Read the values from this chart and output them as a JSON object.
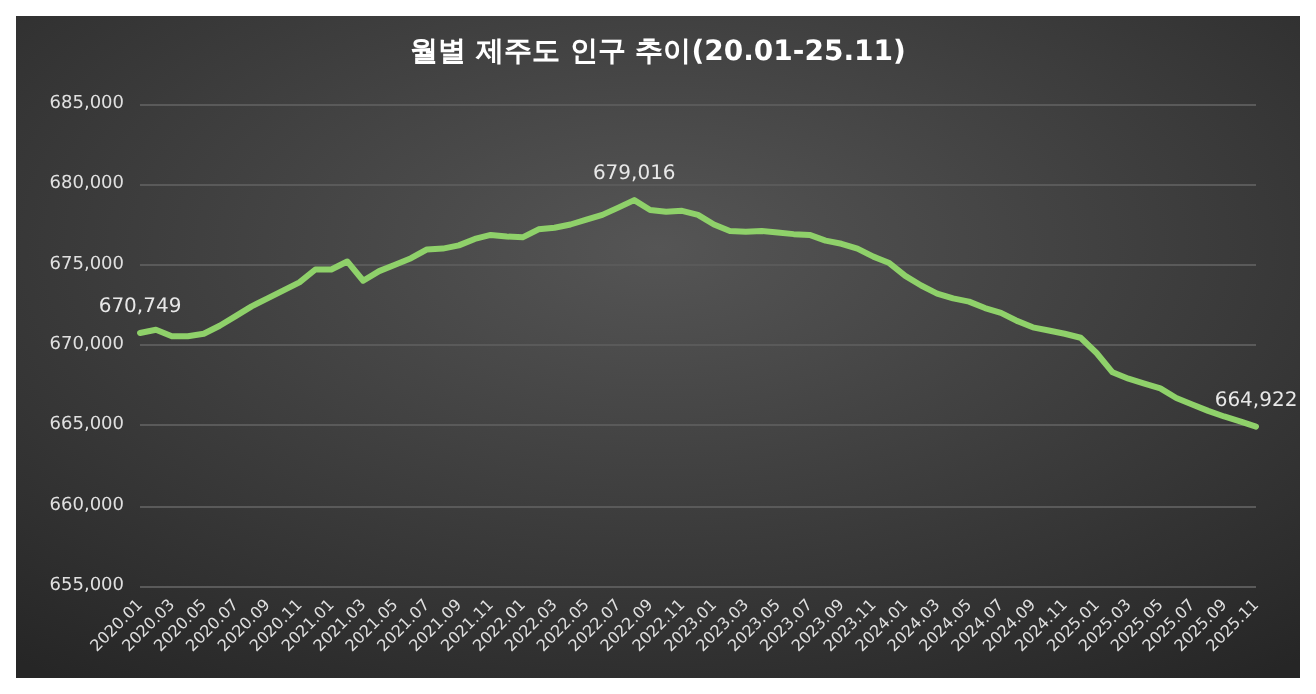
{
  "chart_data": {
    "type": "line",
    "title": "월별 제주도 인구 추이(20.01-25.11)",
    "categories": [
      "2020.01",
      null,
      "2020.03",
      null,
      "2020.05",
      null,
      "2020.07",
      null,
      "2020.09",
      null,
      "2020.11",
      null,
      "2021.01",
      null,
      "2021.03",
      null,
      "2021.05",
      null,
      "2021.07",
      null,
      "2021.09",
      null,
      "2021.11",
      null,
      "2022.01",
      null,
      "2022.03",
      null,
      "2022.05",
      null,
      "2022.07",
      null,
      "2022.09",
      null,
      "2022.11",
      null,
      "2023.01",
      null,
      "2023.03",
      null,
      "2023.05",
      null,
      "2023.07",
      null,
      "2023.09",
      null,
      "2023.11",
      null,
      "2024.01",
      null,
      "2024.03",
      null,
      "2024.05",
      null,
      "2024.07",
      null,
      "2024.09",
      null,
      "2024.11",
      null,
      "2025.01",
      null,
      "2025.03",
      null,
      "2025.05",
      null,
      "2025.07",
      null,
      "2025.09",
      null,
      "2025.11"
    ],
    "series": [
      {
        "color": "#8fd16a",
        "values": [
          670749,
          670950,
          670550,
          670550,
          670700,
          671200,
          671800,
          672400,
          672900,
          673400,
          673900,
          674700,
          674700,
          675200,
          674000,
          674600,
          675000,
          675400,
          675950,
          676000,
          676200,
          676600,
          676850,
          676750,
          676700,
          677200,
          677300,
          677500,
          677800,
          678100,
          678550,
          679016,
          678400,
          678300,
          678350,
          678100,
          677500,
          677100,
          677050,
          677100,
          677000,
          676900,
          676850,
          676500,
          676300,
          676000,
          675500,
          675100,
          674300,
          673700,
          673200,
          672900,
          672700,
          672300,
          672000,
          671500,
          671100,
          670900,
          670700,
          670450,
          669500,
          668300,
          667900,
          667600,
          667300,
          666700,
          666300,
          665900,
          665550,
          665250,
          664922
        ],
        "value_labels": [
          "670,749",
          null,
          null,
          null,
          null,
          null,
          null,
          null,
          null,
          null,
          null,
          null,
          null,
          null,
          null,
          null,
          null,
          null,
          null,
          null,
          null,
          null,
          null,
          null,
          null,
          null,
          null,
          null,
          null,
          null,
          null,
          "679,016",
          null,
          null,
          null,
          null,
          null,
          null,
          null,
          null,
          null,
          null,
          null,
          null,
          null,
          null,
          null,
          null,
          null,
          null,
          null,
          null,
          null,
          null,
          null,
          null,
          null,
          null,
          null,
          null,
          null,
          null,
          null,
          null,
          null,
          null,
          null,
          null,
          null,
          null,
          "664,922"
        ]
      }
    ],
    "ylim": [
      655000,
      685000
    ],
    "yticks": [
      {
        "value": 655000,
        "label": "655,000"
      },
      {
        "value": 660000,
        "label": "660,000"
      },
      {
        "value": 665000,
        "label": "665,000"
      },
      {
        "value": 670000,
        "label": "670,000"
      },
      {
        "value": 675000,
        "label": "675,000"
      },
      {
        "value": 680000,
        "label": "680,000"
      },
      {
        "value": 685000,
        "label": "685,000"
      }
    ],
    "grid": "y",
    "marker": "none",
    "line_style": "solid"
  }
}
